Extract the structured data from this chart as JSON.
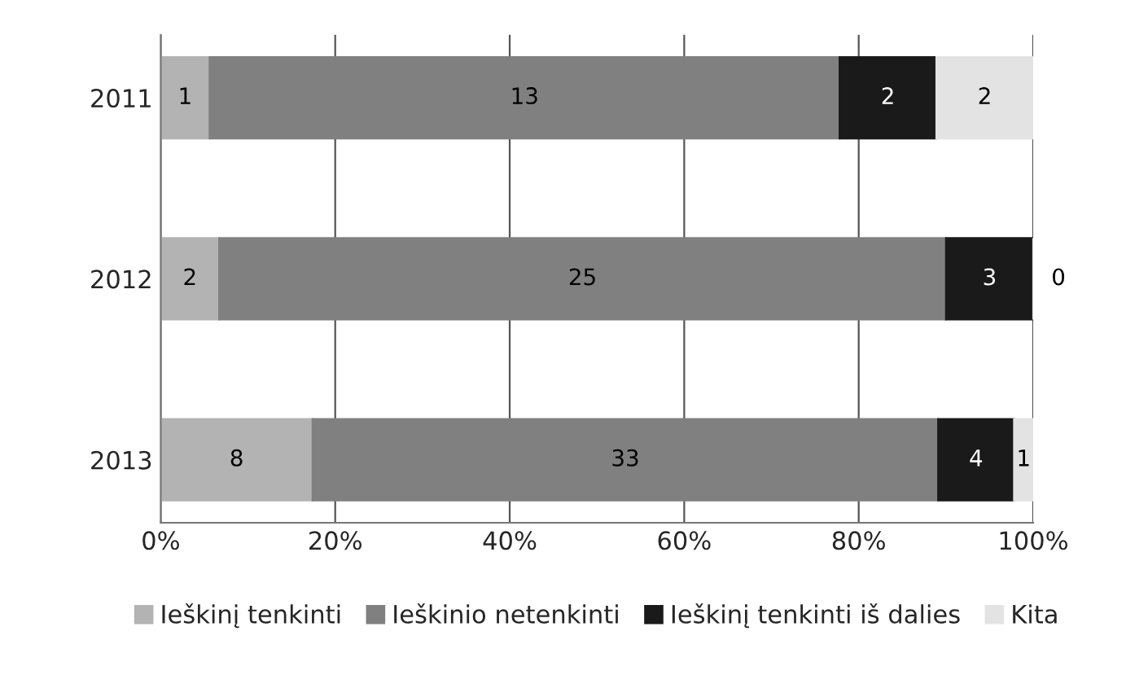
{
  "chart_data": {
    "type": "bar",
    "orientation": "horizontal",
    "stacked": true,
    "categories": [
      "2011",
      "2012",
      "2013"
    ],
    "series": [
      {
        "name": "Ieškinį tenkinti",
        "color": "#b3b3b3",
        "values": [
          5.6,
          6.7,
          17.4
        ]
      },
      {
        "name": "Ieškinio netenkinti",
        "color": "#808080",
        "values": [
          72.2,
          83.3,
          71.7
        ]
      },
      {
        "name": "Ieškinį tenkinti iš dalies",
        "color": "#1a1a1a",
        "values": [
          11.1,
          10.0,
          8.7
        ]
      },
      {
        "name": "Kita",
        "color": "#e3e3e3",
        "values": [
          11.1,
          0,
          2.2
        ]
      }
    ],
    "annotations": [
      "1",
      "13",
      "2",
      "2",
      "2",
      "25",
      "3",
      "0",
      "8",
      "33",
      "4",
      "1"
    ],
    "xlim": [
      0,
      100
    ],
    "xticks": [
      {
        "value": 0,
        "label": "0%"
      },
      {
        "value": 20,
        "label": "20%"
      },
      {
        "value": 40,
        "label": "40%"
      },
      {
        "value": 60,
        "label": "60%"
      },
      {
        "value": 80,
        "label": "80%"
      },
      {
        "value": 100,
        "label": "100%"
      }
    ],
    "grid": "x",
    "legend": "bottom"
  }
}
